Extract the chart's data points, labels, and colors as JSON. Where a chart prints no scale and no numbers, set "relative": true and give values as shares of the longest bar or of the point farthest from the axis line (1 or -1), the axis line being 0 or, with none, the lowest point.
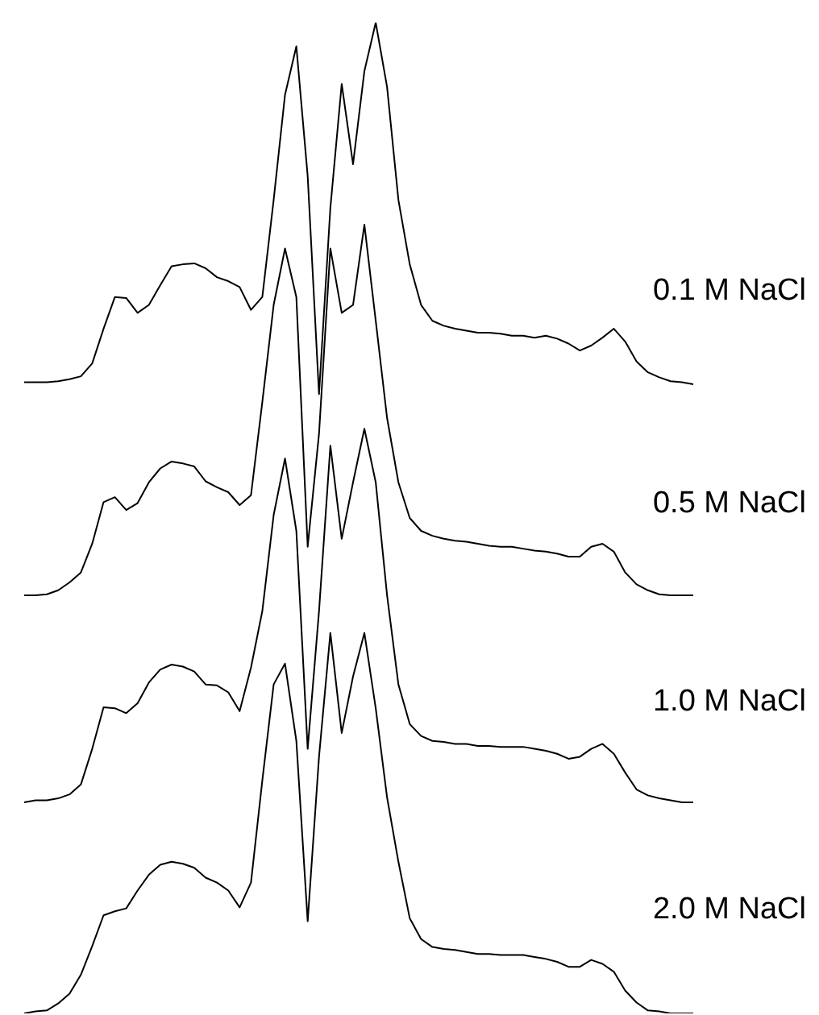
{
  "chart_data": {
    "type": "line",
    "relative": true,
    "categories": [
      null,
      null,
      null,
      null,
      null,
      null,
      null,
      null,
      null,
      null,
      null,
      null,
      null,
      null,
      null,
      null,
      null,
      null,
      null,
      null,
      null,
      null,
      null,
      null,
      null,
      null,
      null,
      null,
      null,
      null,
      null,
      null,
      null,
      null,
      null,
      null,
      null,
      null,
      null,
      null,
      null,
      null,
      null,
      null,
      null,
      null,
      null,
      null,
      null,
      null,
      null,
      null,
      null,
      null,
      null,
      null,
      null,
      null,
      null,
      null
    ],
    "series": [
      {
        "name": "0.1 M NaCl",
        "color": "#000000",
        "values": [
          0.637,
          0.637,
          0.637,
          0.638,
          0.64,
          0.643,
          0.656,
          0.691,
          0.723,
          0.722,
          0.707,
          0.715,
          0.735,
          0.754,
          0.756,
          0.757,
          0.752,
          0.743,
          0.739,
          0.733,
          0.71,
          0.723,
          0.821,
          0.927,
          0.976,
          0.845,
          0.625,
          0.813,
          0.938,
          0.857,
          0.951,
          1,
          0.935,
          0.821,
          0.756,
          0.715,
          0.699,
          0.694,
          0.691,
          0.689,
          0.687,
          0.687,
          0.686,
          0.684,
          0.684,
          0.682,
          0.684,
          0.681,
          0.676,
          0.669,
          0.674,
          0.682,
          0.691,
          0.678,
          0.658,
          0.647,
          0.642,
          0.638,
          0.637,
          0.635
        ]
      },
      {
        "name": "0.5 M NaCl",
        "color": "#000000",
        "values": [
          0.422,
          0.422,
          0.423,
          0.427,
          0.435,
          0.445,
          0.474,
          0.516,
          0.521,
          0.508,
          0.515,
          0.536,
          0.55,
          0.557,
          0.555,
          0.552,
          0.537,
          0.531,
          0.526,
          0.513,
          0.523,
          0.617,
          0.715,
          0.772,
          0.723,
          0.471,
          0.585,
          0.772,
          0.707,
          0.715,
          0.796,
          0.699,
          0.601,
          0.536,
          0.5,
          0.487,
          0.482,
          0.479,
          0.477,
          0.476,
          0.474,
          0.472,
          0.471,
          0.471,
          0.469,
          0.467,
          0.466,
          0.464,
          0.461,
          0.461,
          0.471,
          0.474,
          0.466,
          0.445,
          0.433,
          0.427,
          0.423,
          0.422,
          0.422,
          0.422
        ]
      },
      {
        "name": "1.0 M NaCl",
        "color": "#000000",
        "values": [
          0.213,
          0.215,
          0.215,
          0.217,
          0.221,
          0.231,
          0.267,
          0.309,
          0.308,
          0.303,
          0.313,
          0.334,
          0.347,
          0.352,
          0.35,
          0.345,
          0.332,
          0.331,
          0.324,
          0.305,
          0.349,
          0.406,
          0.503,
          0.56,
          0.487,
          0.267,
          0.406,
          0.573,
          0.479,
          0.536,
          0.59,
          0.536,
          0.422,
          0.332,
          0.292,
          0.28,
          0.275,
          0.274,
          0.272,
          0.272,
          0.27,
          0.27,
          0.269,
          0.269,
          0.269,
          0.267,
          0.265,
          0.262,
          0.257,
          0.259,
          0.267,
          0.272,
          0.262,
          0.243,
          0.226,
          0.22,
          0.217,
          0.215,
          0.213,
          0.213
        ]
      },
      {
        "name": "2.0 M NaCl",
        "color": "#000000",
        "values": [
          0,
          0.002,
          0.003,
          0.01,
          0.02,
          0.039,
          0.068,
          0.099,
          0.103,
          0.106,
          0.124,
          0.14,
          0.15,
          0.153,
          0.151,
          0.147,
          0.137,
          0.132,
          0.124,
          0.107,
          0.132,
          0.235,
          0.332,
          0.353,
          0.275,
          0.093,
          0.259,
          0.384,
          0.283,
          0.34,
          0.384,
          0.308,
          0.218,
          0.153,
          0.096,
          0.075,
          0.067,
          0.065,
          0.064,
          0.062,
          0.06,
          0.06,
          0.059,
          0.059,
          0.059,
          0.057,
          0.055,
          0.052,
          0.047,
          0.047,
          0.054,
          0.05,
          0.042,
          0.023,
          0.011,
          0.003,
          0.002,
          0,
          0,
          0
        ]
      }
    ]
  }
}
